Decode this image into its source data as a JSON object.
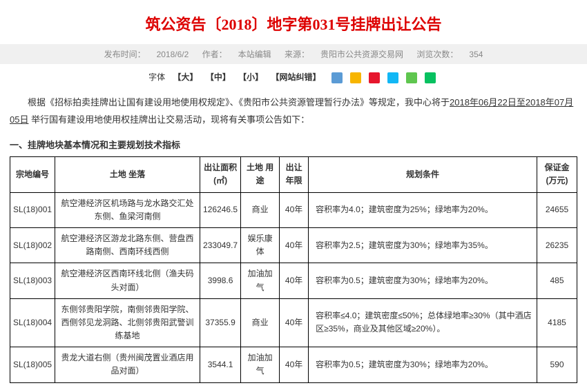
{
  "title": "筑公资告〔2018〕地字第031号挂牌出让公告",
  "meta": {
    "pub_label": "发布时间：",
    "pub_value": "2018/6/2",
    "author_label": "作者：",
    "author_value": "本站编辑",
    "source_label": "来源：",
    "source_value": "贵阳市公共资源交易网",
    "views_label": "浏览次数：",
    "views_value": "354"
  },
  "fontbar": {
    "font_label": "字体",
    "large": "【大】",
    "medium": "【中】",
    "small": "【小】",
    "correct": "【网站纠错】"
  },
  "share_colors": [
    "#5b9bd5",
    "#f7b500",
    "#e6162d",
    "#12b7f5",
    "#5fc64f",
    "#07c160"
  ],
  "intro": {
    "prefix": "根据《招标拍卖挂牌出让国有建设用地使用权规定》、《贵阳市公共资源管理暂行办法》等规定，我中心将于",
    "date_range": "2018年06月22日至2018年07月05日",
    "suffix": " 举行国有建设用地使用权挂牌出让交易活动，现将有关事项公告如下："
  },
  "section_heading": "一、挂牌地块基本情况和主要规划技术指标",
  "table": {
    "headers": {
      "id": "宗地编号",
      "location": "土地\n坐落",
      "area": "出让面积(㎡)",
      "use": "土地\n用途",
      "term": "出让\n年限",
      "conditions": "规划条件",
      "deposit": "保证金(万元)"
    },
    "rows": [
      {
        "id": "SL(18)001",
        "location": "航空港经济区机场路与龙水路交汇处东侧、鱼梁河南侧",
        "area": "126246.5",
        "use": "商业",
        "term": "40年",
        "conditions": "容积率为4.0；建筑密度为25%；绿地率为20%。",
        "deposit": "24655"
      },
      {
        "id": "SL(18)002",
        "location": "航空港经济区游龙北路东侧、营盘西路南侧、西南环线西侧",
        "area": "233049.7",
        "use": "娱乐康体",
        "term": "40年",
        "conditions": "容积率为2.5；建筑密度为30%；绿地率为35%。",
        "deposit": "26235"
      },
      {
        "id": "SL(18)003",
        "location": "航空港经济区西南环线北侧（渔夫码头对面）",
        "area": "3998.6",
        "use": "加油加气",
        "term": "40年",
        "conditions": "容积率为0.5；建筑密度为30%；绿地率为20%。",
        "deposit": "485"
      },
      {
        "id": "SL(18)004",
        "location": "东侧邻贵阳学院，南侧邻贵阳学院、西侧邻见龙洞路、北侧邻贵阳武警训练基地",
        "area": "37355.9",
        "use": "商业",
        "term": "40年",
        "conditions": "容积率≤4.0；建筑密度≤50%；总体绿地率≥30%（其中酒店区≥35%，商业及其他区域≥20%）。",
        "deposit": "4185"
      },
      {
        "id": "SL(18)005",
        "location": "贵龙大道右侧（贵州闽茂置业酒店用品对面）",
        "area": "3544.1",
        "use": "加油加气",
        "term": "40年",
        "conditions": "容积率为0.5；建筑密度为30%；绿地率为20%。",
        "deposit": "590"
      }
    ]
  }
}
